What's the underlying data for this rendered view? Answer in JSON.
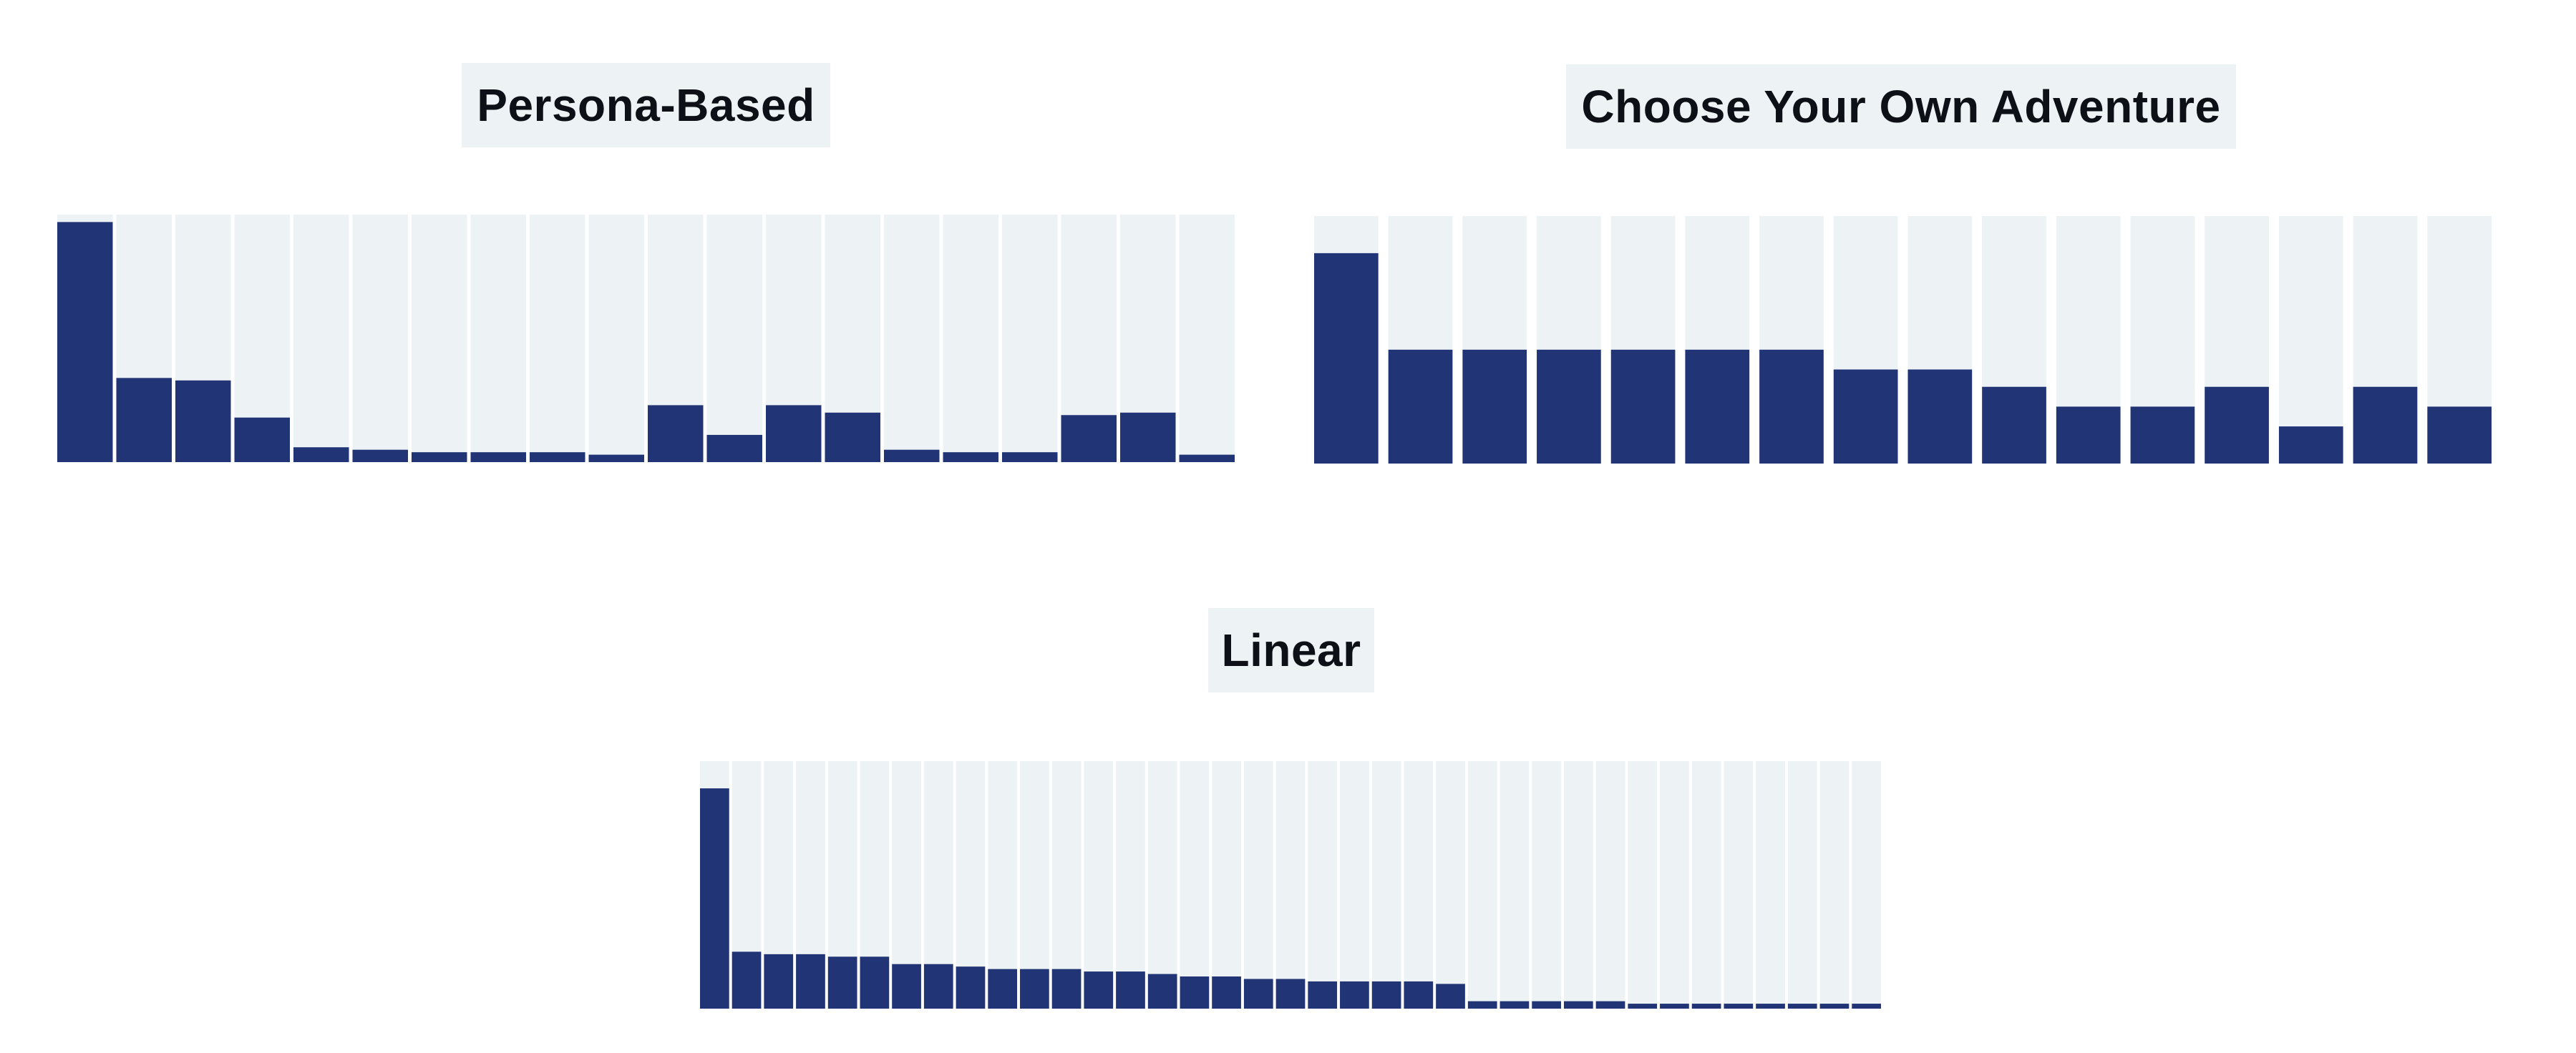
{
  "colors": {
    "bar": "#213476",
    "track": "#edf2f4",
    "title_bg": "#edf2f4",
    "title_text": "#0d1117",
    "background": "#ffffff"
  },
  "chart_data": [
    {
      "type": "bar",
      "title": "Persona-Based",
      "xlabel": "",
      "ylabel": "",
      "ylim": [
        0,
        1
      ],
      "grid": false,
      "values": [
        0.97,
        0.34,
        0.33,
        0.18,
        0.06,
        0.05,
        0.04,
        0.04,
        0.04,
        0.03,
        0.23,
        0.11,
        0.23,
        0.2,
        0.05,
        0.04,
        0.04,
        0.19,
        0.2,
        0.03
      ]
    },
    {
      "type": "bar",
      "title": "Choose Your Own Adventure",
      "xlabel": "",
      "ylabel": "",
      "ylim": [
        0,
        1
      ],
      "grid": false,
      "values": [
        0.85,
        0.46,
        0.46,
        0.46,
        0.46,
        0.46,
        0.46,
        0.38,
        0.38,
        0.31,
        0.23,
        0.23,
        0.31,
        0.15,
        0.31,
        0.23
      ]
    },
    {
      "type": "bar",
      "title": "Linear",
      "xlabel": "",
      "ylabel": "",
      "ylim": [
        0,
        1
      ],
      "grid": false,
      "values": [
        0.89,
        0.23,
        0.22,
        0.22,
        0.21,
        0.21,
        0.18,
        0.18,
        0.17,
        0.16,
        0.16,
        0.16,
        0.15,
        0.15,
        0.14,
        0.13,
        0.13,
        0.12,
        0.12,
        0.11,
        0.11,
        0.11,
        0.11,
        0.1,
        0.03,
        0.03,
        0.03,
        0.03,
        0.03,
        0.02,
        0.02,
        0.02,
        0.02,
        0.02,
        0.02,
        0.02,
        0.02
      ]
    }
  ]
}
